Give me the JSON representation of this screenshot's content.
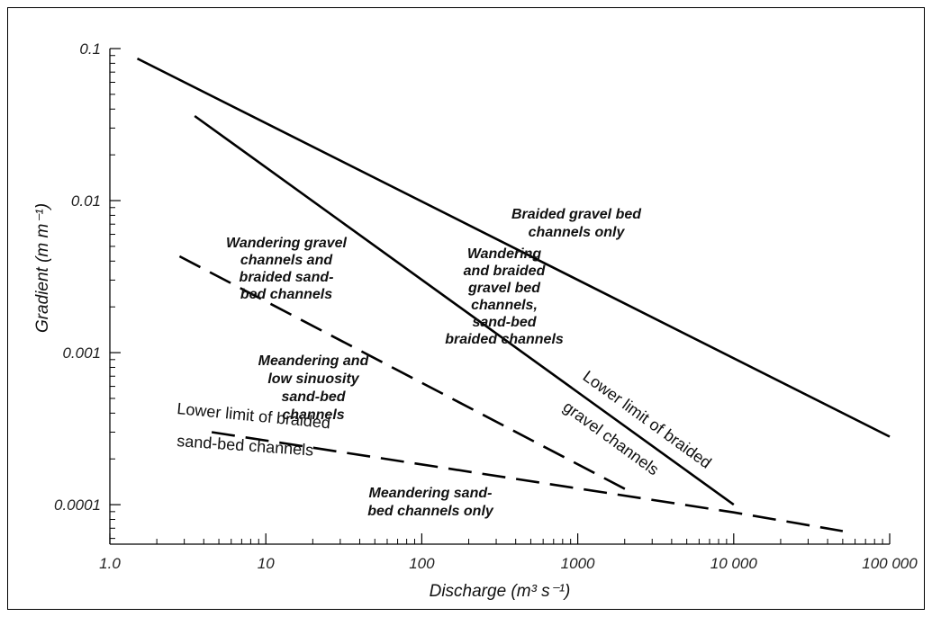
{
  "chart_data": {
    "type": "line",
    "xlabel": "Discharge (m³ s⁻¹)",
    "ylabel": "Gradient (m m⁻¹)",
    "x_scale": "log",
    "y_scale": "log",
    "xlim": [
      1.0,
      100000
    ],
    "ylim": [
      5.5e-05,
      0.1
    ],
    "x_ticks": [
      {
        "value": 1,
        "label": "1.0"
      },
      {
        "value": 10,
        "label": "10"
      },
      {
        "value": 100,
        "label": "100"
      },
      {
        "value": 1000,
        "label": "1000"
      },
      {
        "value": 10000,
        "label": "10 000"
      },
      {
        "value": 100000,
        "label": "100 000"
      }
    ],
    "y_ticks": [
      {
        "value": 0.0001,
        "label": "0.0001"
      },
      {
        "value": 0.001,
        "label": "0.001"
      },
      {
        "value": 0.01,
        "label": "0.01"
      },
      {
        "value": 0.1,
        "label": "0.1"
      }
    ],
    "grid": false,
    "series": [
      {
        "style": "solid",
        "x": [
          1.5,
          100000
        ],
        "y": [
          0.086,
          0.00028
        ]
      },
      {
        "style": "solid",
        "x": [
          3.5,
          10000
        ],
        "y": [
          0.036,
          0.0001
        ]
      },
      {
        "style": "dashed",
        "x": [
          2.8,
          2300
        ],
        "y": [
          0.0043,
          0.000118
        ]
      },
      {
        "style": "dashed",
        "x": [
          4.5,
          10000,
          50000
        ],
        "y": [
          0.0003,
          8.9e-05,
          6.7e-05
        ]
      }
    ],
    "annotations": [
      {
        "kind": "region",
        "lines": [
          "Braided gravel bed",
          "channels only"
        ]
      },
      {
        "kind": "region",
        "lines": [
          "Wandering gravel",
          "channels and",
          "braided sand-",
          "bed channels"
        ]
      },
      {
        "kind": "region",
        "lines": [
          "Wandering",
          "and braided",
          "gravel bed",
          "channels,",
          "sand-bed",
          "braided channels"
        ]
      },
      {
        "kind": "region",
        "lines": [
          "Meandering and",
          "low sinuosity",
          "sand-bed",
          "channels"
        ]
      },
      {
        "kind": "boundary",
        "text": "Lower limit of braided"
      },
      {
        "kind": "boundary",
        "text": "sand-bed channels"
      },
      {
        "kind": "boundary",
        "text": "Lower limit of braided"
      },
      {
        "kind": "boundary",
        "text": "gravel channels"
      },
      {
        "kind": "region",
        "lines": [
          "Meandering sand-",
          "bed channels only"
        ]
      }
    ]
  }
}
